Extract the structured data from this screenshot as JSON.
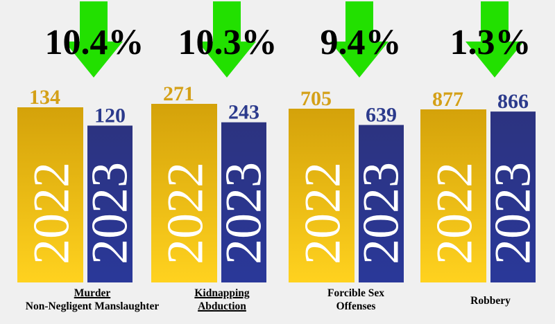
{
  "colors": {
    "year_2022_top": "#d4a20a",
    "year_2022_bottom": "#ffd21f",
    "year_2023_top": "#2c3380",
    "year_2023_bottom": "#2a3899",
    "value_2022": "#d4a017",
    "value_2023": "#2b3a8c",
    "arrow": "#22e000",
    "background": "#f0f0f0"
  },
  "chart_data": {
    "type": "bar",
    "categories": [
      "Murder Non-Negligent Manslaughter",
      "Kidnapping Abduction",
      "Forcible Sex Offenses",
      "Robbery"
    ],
    "category_label_lines": [
      [
        "Murder",
        "Non-Negligent Manslaughter"
      ],
      [
        "Kidnapping",
        "Abduction"
      ],
      [
        "Forcible Sex",
        "Offenses"
      ],
      [
        "",
        "Robbery"
      ]
    ],
    "series": [
      {
        "name": "2022",
        "values": [
          134,
          271,
          705,
          877
        ]
      },
      {
        "name": "2023",
        "values": [
          120,
          243,
          639,
          866
        ]
      }
    ],
    "changes": [
      "10.4%",
      "10.3%",
      "9.4%",
      "1.3%"
    ],
    "change_direction": "down"
  }
}
